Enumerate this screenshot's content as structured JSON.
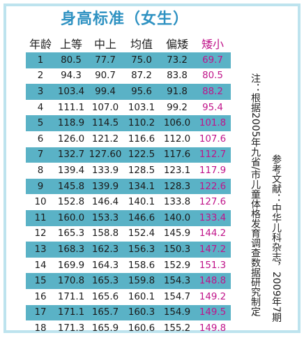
{
  "title": "身高标准（女生）",
  "table": {
    "headers": [
      "年龄",
      "上等",
      "中上",
      "均值",
      "偏矮",
      "矮小"
    ],
    "rows": [
      [
        "1",
        "80.5",
        "77.7",
        "75.0",
        "73.2",
        "69.7"
      ],
      [
        "2",
        "94.3",
        "90.7",
        "87.2",
        "83.8",
        "80.5"
      ],
      [
        "3",
        "103.4",
        "99.4",
        "95.6",
        "91.8",
        "88.2"
      ],
      [
        "4",
        "111.1",
        "107.0",
        "103.1",
        "99.2",
        "95.4"
      ],
      [
        "5",
        "118.9",
        "114.5",
        "110.2",
        "106.0",
        "101.8"
      ],
      [
        "6",
        "126.0",
        "121.2",
        "116.6",
        "112.0",
        "107.6"
      ],
      [
        "7",
        "132.7",
        "127.60",
        "122.5",
        "117.6",
        "112.7"
      ],
      [
        "8",
        "139.4",
        "133.9",
        "128.5",
        "123.1",
        "117.9"
      ],
      [
        "9",
        "145.8",
        "139.9",
        "134.1",
        "128.3",
        "122.6"
      ],
      [
        "10",
        "152.8",
        "146.4",
        "140.1",
        "133.8",
        "127.6"
      ],
      [
        "11",
        "160.0",
        "153.3",
        "146.6",
        "140.0",
        "133.4"
      ],
      [
        "12",
        "165.3",
        "158.8",
        "152.4",
        "145.9",
        "144.2"
      ],
      [
        "13",
        "168.3",
        "162.3",
        "156.3",
        "150.3",
        "147.2"
      ],
      [
        "14",
        "169.9",
        "164.3",
        "158.6",
        "152.9",
        "151.3"
      ],
      [
        "15",
        "170.8",
        "165.3",
        "159.8",
        "154.3",
        "148.8"
      ],
      [
        "16",
        "171.1",
        "165.6",
        "160.1",
        "154.7",
        "149.2"
      ],
      [
        "17",
        "171.1",
        "165.7",
        "160.3",
        "154.9",
        "149.5"
      ],
      [
        "18",
        "171.3",
        "165.9",
        "160.6",
        "155.2",
        "149.8"
      ]
    ]
  },
  "notes": {
    "note1": "注：根据2005年九省/市儿童体格发育调查数据研究制定",
    "note2": "参考文献：中华儿科杂志，2009年7期"
  },
  "colors": {
    "title": "#2f92c2",
    "band": "#5ab2c6",
    "short_column": "#c0148a",
    "border": "#bde3ee"
  }
}
